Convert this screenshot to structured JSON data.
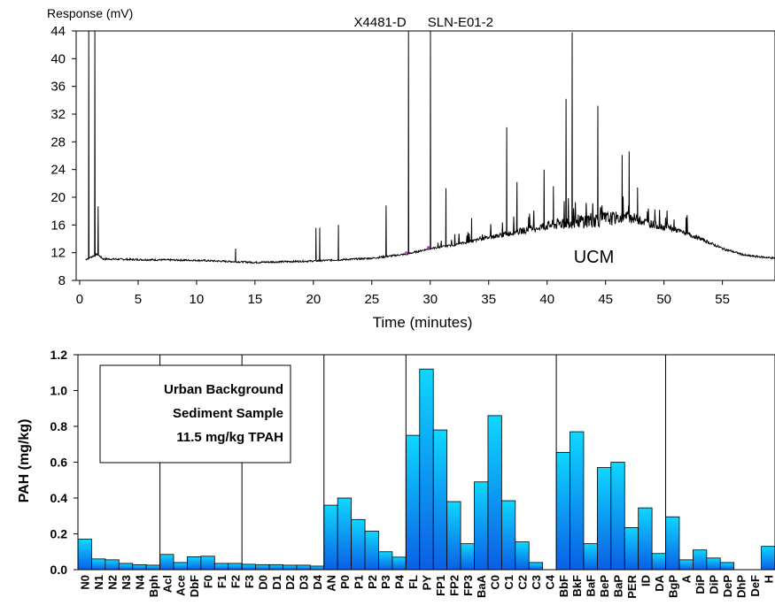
{
  "chart_data": [
    {
      "type": "line",
      "ylabel": "Response (mV)",
      "xlabel": "Time (minutes)",
      "xlim": [
        -0.3,
        59.5
      ],
      "ylim": [
        8,
        44
      ],
      "yticks": [
        8,
        12,
        16,
        20,
        24,
        28,
        32,
        36,
        40,
        44
      ],
      "xticks": [
        0,
        5,
        10,
        15,
        20,
        25,
        30,
        35,
        40,
        45,
        50,
        55
      ],
      "annotations": [
        {
          "text": "X4481-D",
          "x": 28.1
        },
        {
          "text": "SLN-E01-2",
          "x": 30.0
        },
        {
          "text": "UCM",
          "x": 44.0,
          "y": 11.6
        }
      ],
      "baseline": [
        [
          0.5,
          11
        ],
        [
          1.5,
          11.8
        ],
        [
          2,
          11.1
        ],
        [
          5,
          11
        ],
        [
          10,
          10.9
        ],
        [
          15,
          10.6
        ],
        [
          20,
          10.8
        ],
        [
          25,
          11.2
        ],
        [
          28,
          11.8
        ],
        [
          30,
          12.6
        ],
        [
          32,
          13.1
        ],
        [
          35,
          14.2
        ],
        [
          38,
          15.2
        ],
        [
          40,
          15.9
        ],
        [
          42,
          16.4
        ],
        [
          44,
          16.8
        ],
        [
          46,
          17
        ],
        [
          47,
          17.2
        ],
        [
          49,
          16.1
        ],
        [
          51,
          15.3
        ],
        [
          53,
          14.1
        ],
        [
          55,
          12.6
        ],
        [
          57,
          11.6
        ],
        [
          59.5,
          11.2
        ]
      ],
      "peaks": [
        [
          0.8,
          44
        ],
        [
          1.3,
          44
        ],
        [
          1.6,
          18.7
        ],
        [
          13.3,
          12.6
        ],
        [
          20.2,
          15.6
        ],
        [
          20.5,
          15.6
        ],
        [
          22.1,
          16
        ],
        [
          26.2,
          18.8
        ],
        [
          28.1,
          44
        ],
        [
          30.0,
          44
        ],
        [
          31.3,
          21.3
        ],
        [
          33.5,
          17
        ],
        [
          36.5,
          30.1
        ],
        [
          37.4,
          22.2
        ],
        [
          39.7,
          24
        ],
        [
          40.5,
          21.6
        ],
        [
          41.6,
          34.2
        ],
        [
          42.1,
          43.8
        ],
        [
          44.3,
          33.2
        ],
        [
          46.4,
          26.1
        ],
        [
          47.0,
          26.6
        ],
        [
          47.7,
          21.4
        ]
      ]
    },
    {
      "type": "bar",
      "ylabel": "PAH (mg/kg)",
      "ylim": [
        0,
        1.2
      ],
      "yticks": [
        "0.0",
        "0.2",
        "0.4",
        "0.6",
        "0.8",
        "1.0",
        "1.2"
      ],
      "categories": [
        "N0",
        "N1",
        "N2",
        "N3",
        "N4",
        "Bph",
        "Acl",
        "Ace",
        "DbF",
        "F0",
        "F1",
        "F2",
        "F3",
        "D0",
        "D1",
        "D2",
        "D3",
        "D4",
        "AN",
        "P0",
        "P1",
        "P2",
        "P3",
        "P4",
        "FL",
        "PY",
        "FP1",
        "FP2",
        "FP3",
        "BaA",
        "C0",
        "C1",
        "C2",
        "C3",
        "C4",
        "BbF",
        "BkF",
        "BaF",
        "BeP",
        "BaP",
        "PER",
        "ID",
        "DA",
        "BgP",
        "A",
        "DiP",
        "DiP",
        "DeP",
        "DhP",
        "DeF",
        "H"
      ],
      "values": [
        0.17,
        0.06,
        0.055,
        0.035,
        0.028,
        0.025,
        0.085,
        0.04,
        0.072,
        0.075,
        0.035,
        0.035,
        0.03,
        0.028,
        0.028,
        0.025,
        0.025,
        0.02,
        0.36,
        0.4,
        0.28,
        0.215,
        0.1,
        0.07,
        0.75,
        1.12,
        0.78,
        0.38,
        0.145,
        0.49,
        0.86,
        0.385,
        0.155,
        0.04,
        0.0,
        0.655,
        0.77,
        0.145,
        0.57,
        0.6,
        0.235,
        0.345,
        0.09,
        0.295,
        0.055,
        0.11,
        0.065,
        0.04,
        0.0,
        0.0,
        0.13
      ],
      "group_dividers_after": [
        5,
        11,
        17,
        23,
        34,
        42,
        50
      ],
      "legend_box": [
        "Urban Background",
        "Sediment Sample",
        "11.5 mg/kg TPAH"
      ],
      "bar_gradient": [
        "#0fd7ff",
        "#0a5fe6"
      ]
    }
  ]
}
